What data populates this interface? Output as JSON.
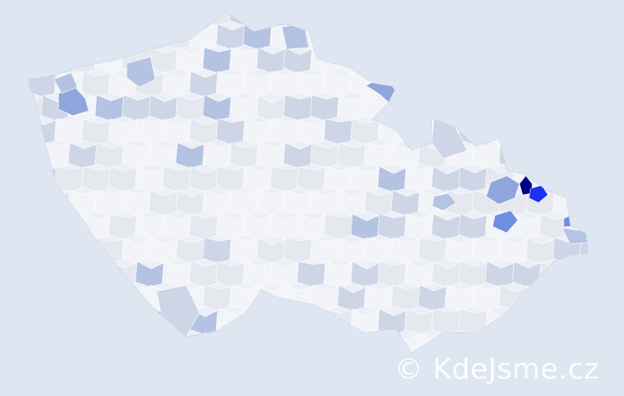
{
  "map": {
    "background_color": "#dde6f1",
    "base_fill_color": "#eceff5",
    "border_color": "#c9d2e2",
    "scale_colors": [
      "#f3f4f8",
      "#e6e8ef",
      "#cdd5e6",
      "#b5c3e3",
      "#8ea6dd",
      "#6f8ee0",
      "#1a33f0",
      "#00008b"
    ],
    "highlighted_regions": [
      {
        "level": 7,
        "color": "#00008b"
      },
      {
        "level": 6,
        "color": "#1a33f0"
      },
      {
        "level": 5,
        "color": "#7b98dc"
      },
      {
        "level": 4,
        "color": "#9fb2e0"
      }
    ]
  },
  "watermark": {
    "text": "© KdeJsme.cz"
  }
}
